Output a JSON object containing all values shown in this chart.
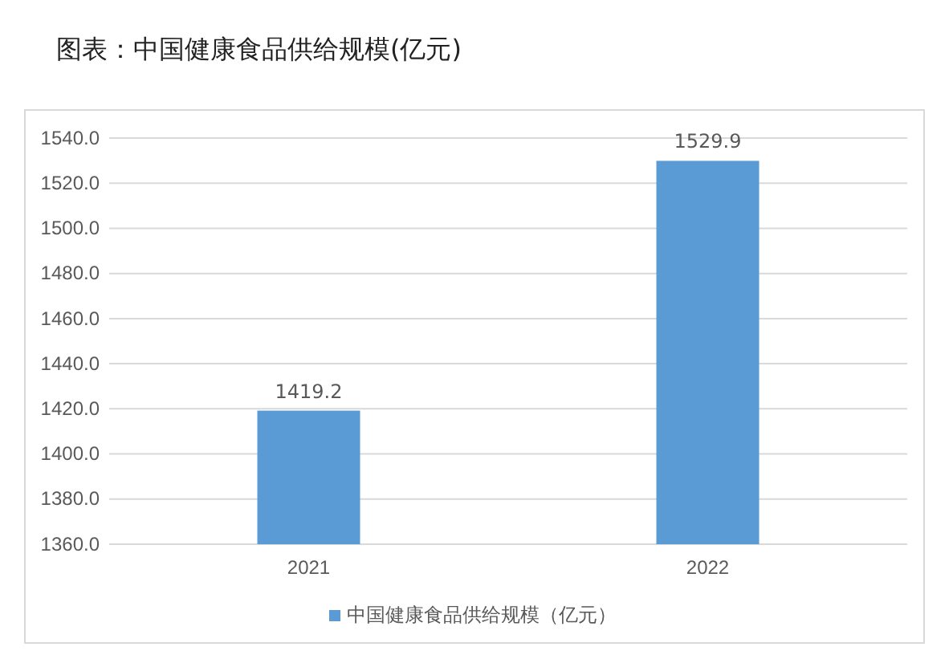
{
  "chart_data": {
    "type": "bar",
    "title": "图表：中国健康食品供给规模(亿元)",
    "categories": [
      "2021",
      "2022"
    ],
    "series": [
      {
        "name": "中国健康食品供给规模（亿元）",
        "color": "#5b9bd5",
        "values": [
          1419.2,
          1529.9
        ]
      }
    ],
    "ylim": [
      1360,
      1540
    ],
    "yticks": [
      {
        "value": 1360,
        "label": "1360.0"
      },
      {
        "value": 1380,
        "label": "1380.0"
      },
      {
        "value": 1400,
        "label": "1400.0"
      },
      {
        "value": 1420,
        "label": "1420.0"
      },
      {
        "value": 1440,
        "label": "1440.0"
      },
      {
        "value": 1460,
        "label": "1460.0"
      },
      {
        "value": 1480,
        "label": "1480.0"
      },
      {
        "value": 1500,
        "label": "1500.0"
      },
      {
        "value": 1520,
        "label": "1520.0"
      },
      {
        "value": 1540,
        "label": "1540.0"
      }
    ],
    "grid": "y",
    "legend": "bottom",
    "data_labels": true
  }
}
